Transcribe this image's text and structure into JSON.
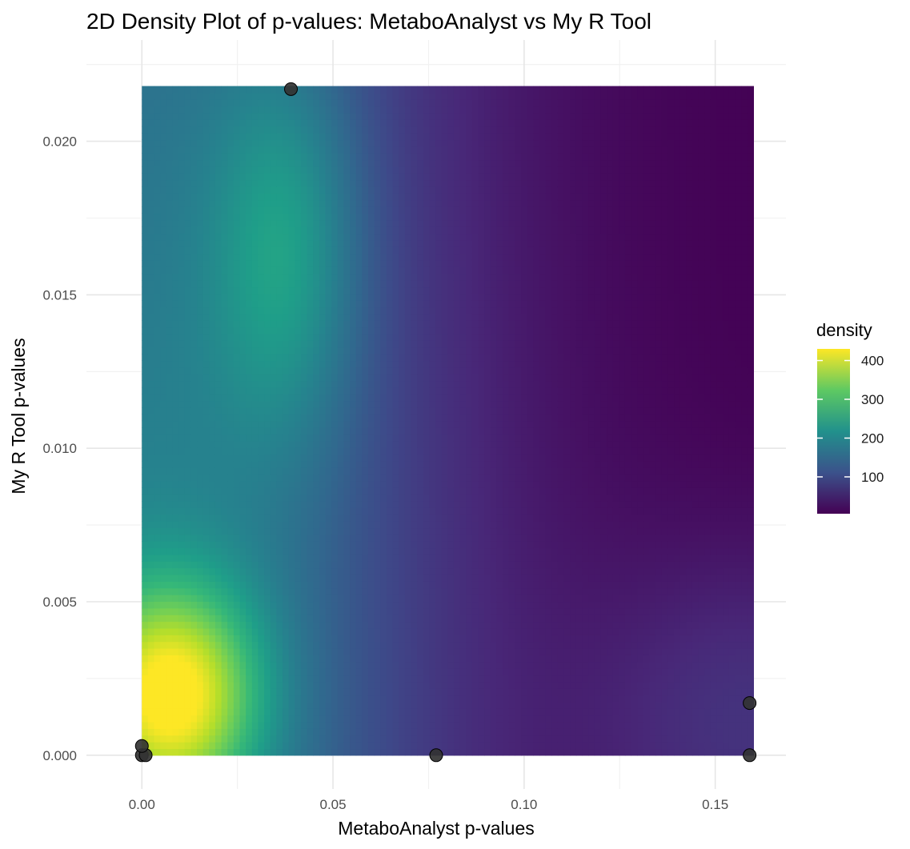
{
  "chart_data": {
    "type": "heatmap",
    "title": "2D Density Plot of p-values: MetaboAnalyst vs My R Tool",
    "xlabel": "MetaboAnalyst p-values",
    "ylabel": "My R Tool p-values",
    "xlim": [
      -0.0145,
      0.1685
    ],
    "ylim": [
      -0.0011,
      0.0233
    ],
    "x_ticks": [
      0.0,
      0.05,
      0.1,
      0.15
    ],
    "x_tick_labels": [
      "0.00",
      "0.05",
      "0.10",
      "0.15"
    ],
    "y_ticks": [
      0.0,
      0.005,
      0.01,
      0.015,
      0.02
    ],
    "y_tick_labels": [
      "0.000",
      "0.005",
      "0.010",
      "0.015",
      "0.020"
    ],
    "grid": true,
    "density_extent": {
      "x": [
        0.0,
        0.16
      ],
      "y": [
        0.0,
        0.0218
      ]
    },
    "density_peaks": [
      {
        "x": 0.008,
        "y": 0.002,
        "density": 430
      },
      {
        "x": 0.038,
        "y": 0.0165,
        "density": 285
      }
    ],
    "colorscale": "viridis",
    "points": [
      {
        "x": 0.0,
        "y": 0.0
      },
      {
        "x": 0.001,
        "y": 0.0
      },
      {
        "x": 0.0,
        "y": 0.0003
      },
      {
        "x": 0.039,
        "y": 0.0217
      },
      {
        "x": 0.077,
        "y": 0.0
      },
      {
        "x": 0.159,
        "y": 0.0
      },
      {
        "x": 0.159,
        "y": 0.0017
      }
    ],
    "legend": {
      "title": "density",
      "placement": "right",
      "range": [
        5,
        430
      ],
      "ticks": [
        100,
        200,
        300,
        400
      ],
      "tick_labels": [
        "100",
        "200",
        "300",
        "400"
      ]
    }
  }
}
